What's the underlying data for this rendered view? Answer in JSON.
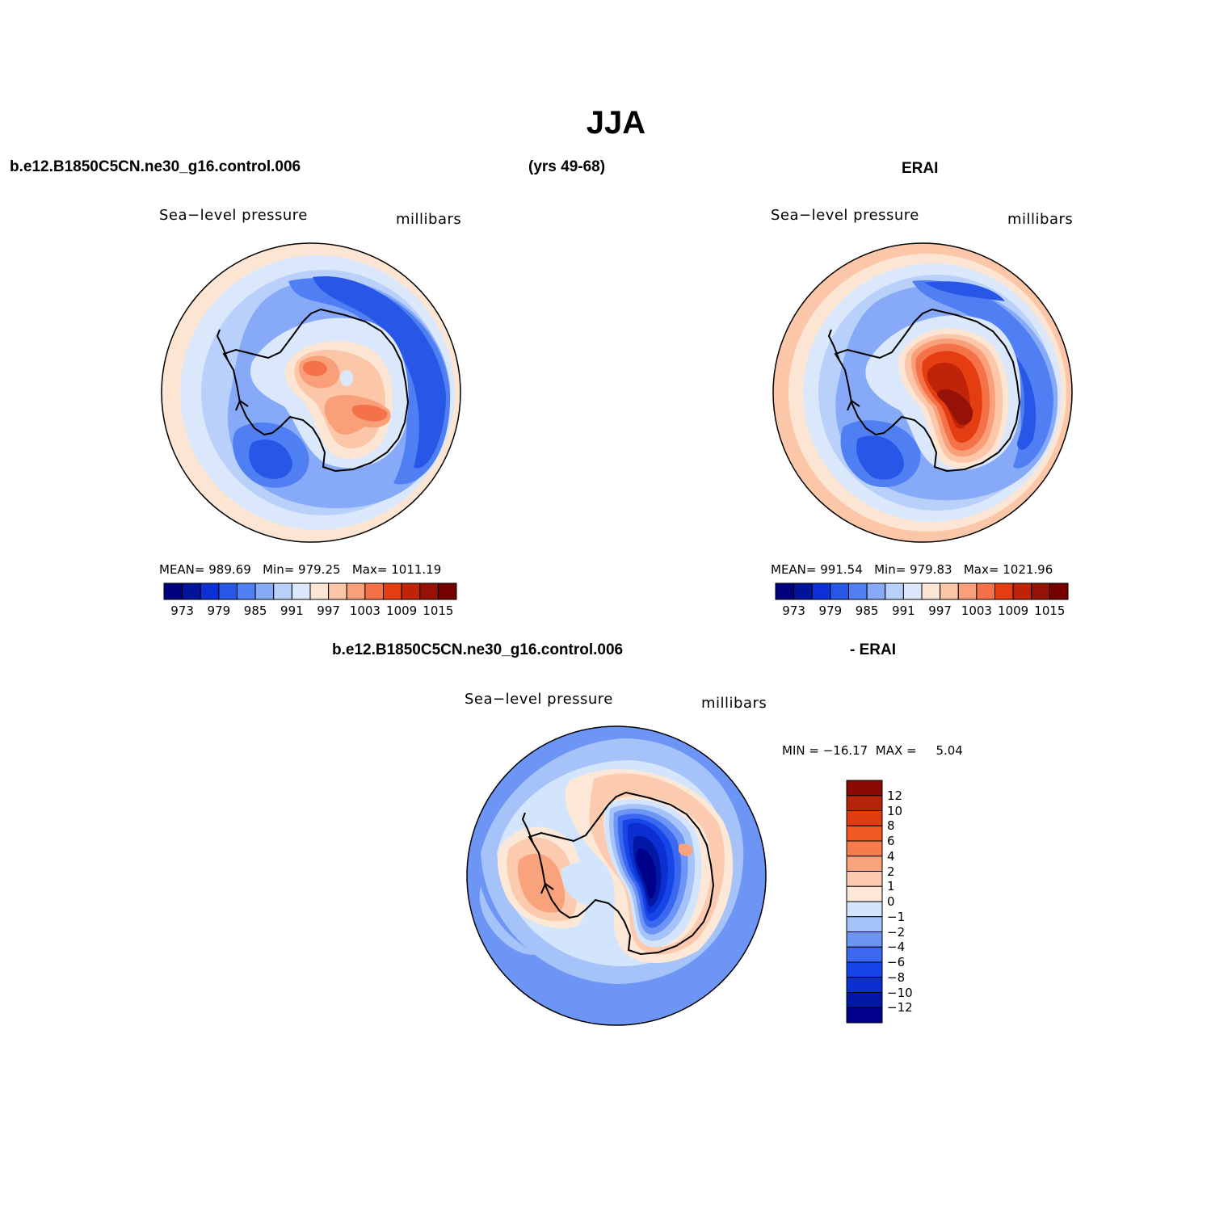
{
  "title": "JJA",
  "headers": {
    "top_left_case": "b.e12.B1850C5CN.ne30_g16.control.006",
    "top_years": "(yrs 49-68)",
    "top_right_obs": "ERAI",
    "bottom_case": "b.e12.B1850C5CN.ne30_g16.control.006",
    "bottom_obs": "- ERAI"
  },
  "colors": {
    "abs_palette": [
      "#00007f",
      "#001399",
      "#0c2fd6",
      "#2856e6",
      "#4f7ff2",
      "#86aaf7",
      "#b9d0fa",
      "#dbe8fc",
      "#fde5d3",
      "#fcc6a8",
      "#f9a07a",
      "#f57147",
      "#e53d12",
      "#c02408",
      "#961206",
      "#760000"
    ],
    "diff_palette": [
      "#00008a",
      "#0118a5",
      "#0b2fd0",
      "#1746e8",
      "#3c68ef",
      "#6d95f5",
      "#a6c3f9",
      "#d3e5fc",
      "#fde8d8",
      "#fccbaf",
      "#f9a37d",
      "#f77b4d",
      "#f15a24",
      "#e13b11",
      "#b5240b",
      "#8a0b04"
    ]
  },
  "panels": [
    {
      "id": "model",
      "variable": "Sea−level pressure",
      "units": "millibars",
      "stats": {
        "mean_label": "MEAN=",
        "mean": "989.69",
        "min_label": "Min=",
        "min": "979.25",
        "max_label": "Max=",
        "max": "1011.19"
      },
      "colorbar_ticks": [
        "973",
        "979",
        "985",
        "991",
        "997",
        "1003",
        "1009",
        "1015"
      ]
    },
    {
      "id": "obs",
      "variable": "Sea−level pressure",
      "units": "millibars",
      "stats": {
        "mean_label": "MEAN=",
        "mean": "991.54",
        "min_label": "Min=",
        "min": "979.83",
        "max_label": "Max=",
        "max": "1021.96"
      },
      "colorbar_ticks": [
        "973",
        "979",
        "985",
        "991",
        "997",
        "1003",
        "1009",
        "1015"
      ]
    },
    {
      "id": "diff",
      "variable": "Sea−level pressure",
      "units": "millibars",
      "stats": {
        "min_label": "MIN =",
        "min": "−16.17",
        "max_label": "MAX =",
        "max": "5.04"
      },
      "colorbar_ticks": [
        "12",
        "10",
        "8",
        "6",
        "4",
        "2",
        "1",
        "0",
        "−1",
        "−2",
        "−4",
        "−6",
        "−8",
        "−10",
        "−12"
      ]
    }
  ]
}
